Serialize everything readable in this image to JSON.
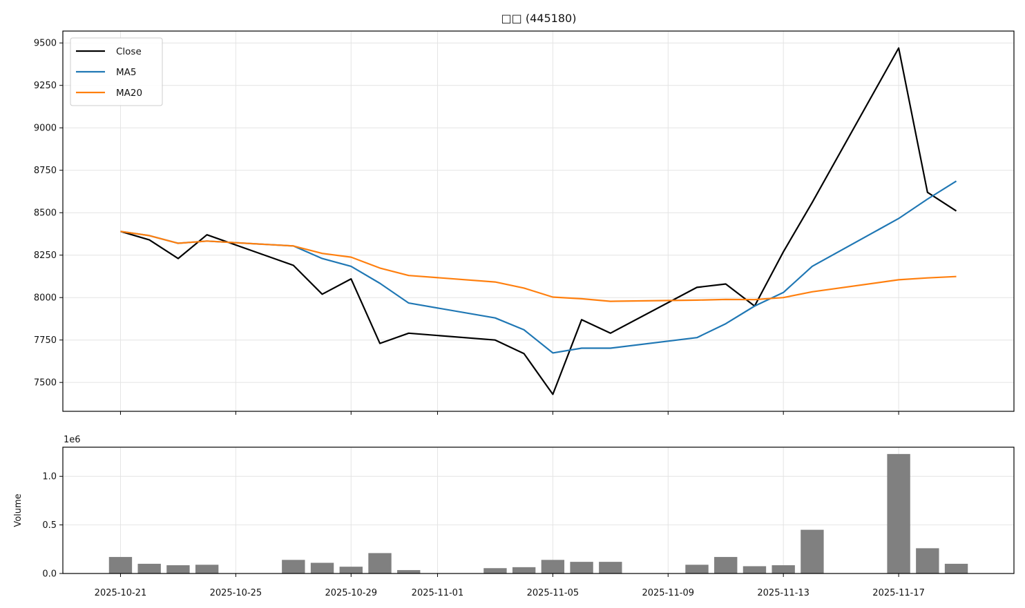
{
  "chart_data": {
    "type": "line",
    "title": "□□ (445180)",
    "dates": [
      "2025-10-21",
      "2025-10-22",
      "2025-10-23",
      "2025-10-24",
      "2025-10-27",
      "2025-10-28",
      "2025-10-29",
      "2025-10-30",
      "2025-10-31",
      "2025-11-03",
      "2025-11-04",
      "2025-11-05",
      "2025-11-06",
      "2025-11-07",
      "2025-11-10",
      "2025-11-11",
      "2025-11-12",
      "2025-11-13",
      "2025-11-14",
      "2025-11-17",
      "2025-11-18",
      "2025-11-19"
    ],
    "x_ticks": [
      "2025-10-21",
      "2025-10-25",
      "2025-10-29",
      "2025-11-01",
      "2025-11-05",
      "2025-11-09",
      "2025-11-13",
      "2025-11-17"
    ],
    "x_range": [
      "2025-10-19",
      "2025-11-21"
    ],
    "price_panel": {
      "ylim": [
        7330,
        9570
      ],
      "yticks": [
        "7500",
        "7750",
        "8000",
        "8250",
        "8500",
        "8750",
        "9000",
        "9250",
        "9500"
      ],
      "grid": true,
      "legend_position": "top-left",
      "series": [
        {
          "name": "Close",
          "color": "#000000",
          "values": [
            8390,
            8340,
            8230,
            8370,
            8190,
            8020,
            8110,
            7730,
            7790,
            7750,
            7670,
            7430,
            7870,
            7790,
            8060,
            8080,
            7950,
            8270,
            8560,
            9470,
            8620,
            8510
          ]
        },
        {
          "name": "MA5",
          "color": "#1f77b4",
          "values": [
            8390,
            8365,
            8320,
            8333,
            8304,
            8230,
            8184,
            8084,
            7968,
            7880,
            7810,
            7674,
            7702,
            7702,
            7764,
            7846,
            7950,
            8030,
            8184,
            8466,
            8580,
            8686
          ]
        },
        {
          "name": "MA20",
          "color": "#ff7f0e",
          "values": [
            8390,
            8365,
            8320,
            8333,
            8304,
            8260,
            8238,
            8174,
            8130,
            8092,
            8056,
            8003,
            7993,
            7978,
            7985,
            7989,
            7988,
            8000,
            8034,
            8105,
            8116,
            8124
          ]
        }
      ]
    },
    "volume_panel": {
      "ylabel": "Volume",
      "scale_label": "1e6",
      "ylim": [
        0,
        1.3
      ],
      "yticks": [
        "0.0",
        "0.5",
        "1.0"
      ],
      "bar_color": "#808080",
      "grid": true,
      "values": [
        0.17,
        0.1,
        0.085,
        0.09,
        0.14,
        0.11,
        0.07,
        0.21,
        0.035,
        0.055,
        0.065,
        0.14,
        0.12,
        0.12,
        0.09,
        0.17,
        0.075,
        0.085,
        0.45,
        1.23,
        0.26,
        0.1
      ]
    }
  }
}
